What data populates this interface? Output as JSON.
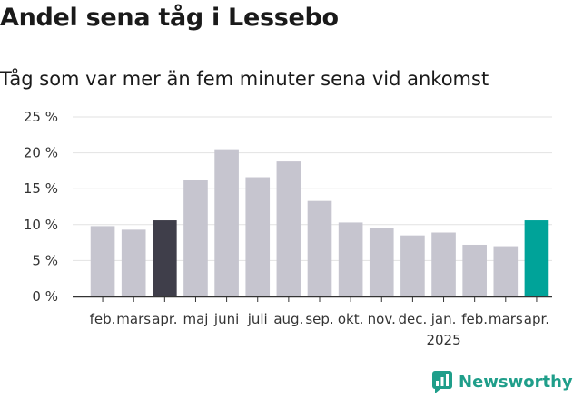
{
  "title": "Andel sena tåg i Lessebo",
  "subtitle": "Tåg som var mer än fem minuter sena vid ankomst",
  "logo_text": "Newsworthy",
  "colors": {
    "default": "#c6c5cf",
    "highlight_past": "#3f3e4a",
    "highlight_current": "#00a399",
    "grid": "#e2e2e2",
    "axis": "#333333"
  },
  "chart_data": {
    "type": "bar",
    "title": "Andel sena tåg i Lessebo",
    "subtitle": "Tåg som var mer än fem minuter sena vid ankomst",
    "categories": [
      "feb.",
      "mars",
      "apr.",
      "maj",
      "juni",
      "juli",
      "aug.",
      "sep.",
      "okt.",
      "nov.",
      "dec.",
      "jan.",
      "feb.",
      "mars",
      "apr."
    ],
    "year_label": "2025",
    "year_label_index": 11,
    "values": [
      9.8,
      9.3,
      10.6,
      16.2,
      20.5,
      16.6,
      18.8,
      13.3,
      10.3,
      9.5,
      8.5,
      8.9,
      7.2,
      7.0,
      10.6
    ],
    "highlight": [
      "default",
      "default",
      "highlight_past",
      "default",
      "default",
      "default",
      "default",
      "default",
      "default",
      "default",
      "default",
      "default",
      "default",
      "default",
      "highlight_current"
    ],
    "yticks": [
      "0 %",
      "5 %",
      "10 %",
      "15 %",
      "20 %",
      "25 %"
    ],
    "ytick_values": [
      0,
      5,
      10,
      15,
      20,
      25
    ],
    "ylim": [
      0,
      25
    ],
    "xlabel": "",
    "ylabel": "",
    "grid": true
  }
}
